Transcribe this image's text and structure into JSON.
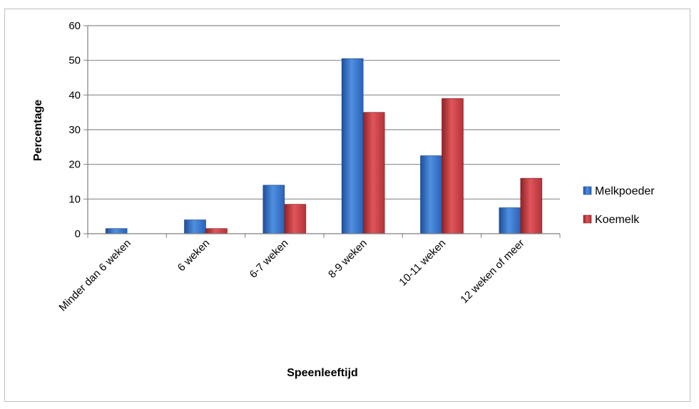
{
  "chart_data": {
    "type": "bar",
    "xlabel": "Speenleeftijd",
    "ylabel": "Percentage",
    "ylim": [
      0,
      60
    ],
    "yticks": [
      0,
      10,
      20,
      30,
      40,
      50,
      60
    ],
    "grid": true,
    "legend_position": "right",
    "categories": [
      "Minder dan 6 weken",
      "6 weken",
      "6-7 weken",
      "8-9 weken",
      "10-11 weken",
      "12 weken of meer"
    ],
    "series": [
      {
        "name": "Melkpoeder",
        "color": "#2f6fc6",
        "values": [
          1.5,
          4,
          14,
          50.5,
          22.5,
          7.5
        ]
      },
      {
        "name": "Koemelk",
        "color": "#c0393b",
        "values": [
          0,
          1.5,
          8.5,
          35,
          39,
          16
        ]
      }
    ]
  }
}
